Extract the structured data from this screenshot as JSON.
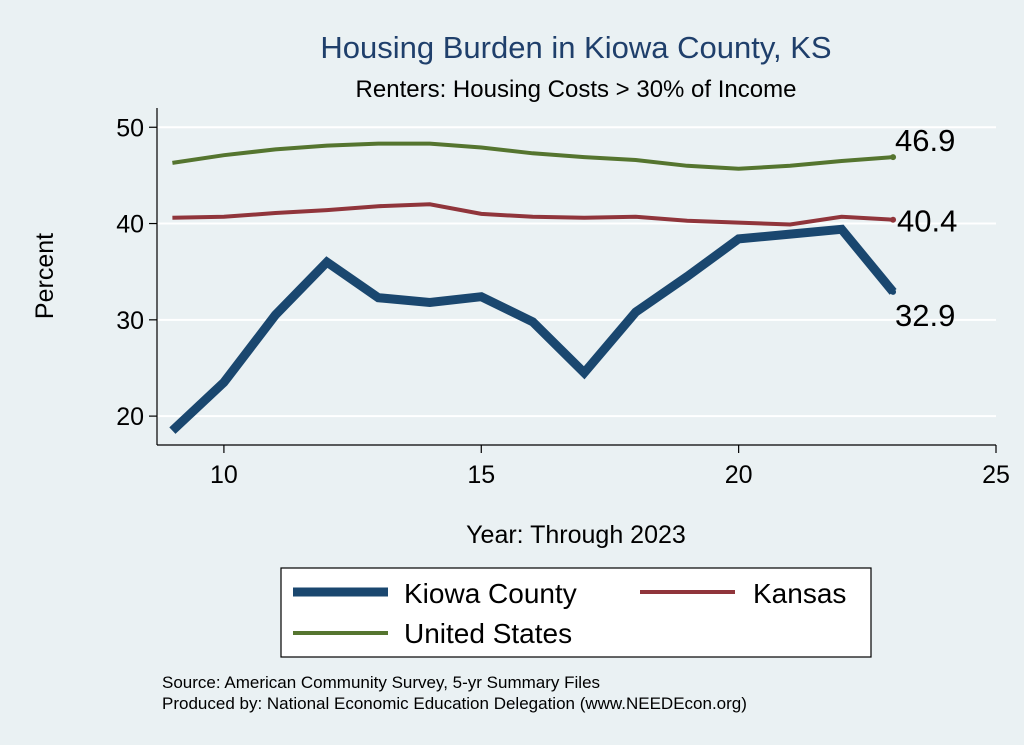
{
  "chart_data": {
    "type": "line",
    "title": "Housing Burden in Kiowa County, KS",
    "subtitle": "Renters: Housing Costs > 30% of Income",
    "xlabel": "Year: Through 2023",
    "ylabel": "Percent",
    "xlim": [
      8.7,
      25
    ],
    "ylim": [
      17,
      52
    ],
    "xticks": [
      10,
      15,
      20,
      25
    ],
    "yticks": [
      20,
      30,
      40,
      50
    ],
    "series": [
      {
        "name": "Kiowa County",
        "color": "#1a476f",
        "x": [
          9,
          10,
          11,
          12,
          13,
          14,
          15,
          16,
          17,
          18,
          19,
          20,
          21,
          22,
          23
        ],
        "values": [
          18.5,
          23.5,
          30.5,
          36.0,
          32.3,
          31.8,
          32.4,
          29.8,
          24.5,
          30.8,
          34.5,
          38.4,
          38.9,
          39.4,
          32.9
        ],
        "end_label": "32.9"
      },
      {
        "name": "Kansas",
        "color": "#90353b",
        "x": [
          9,
          10,
          11,
          12,
          13,
          14,
          15,
          16,
          17,
          18,
          19,
          20,
          21,
          22,
          23
        ],
        "values": [
          40.6,
          40.7,
          41.1,
          41.4,
          41.8,
          42.0,
          41.0,
          40.7,
          40.6,
          40.7,
          40.3,
          40.1,
          39.9,
          40.7,
          40.4
        ],
        "end_label": "40.4"
      },
      {
        "name": "United States",
        "color": "#55752f",
        "x": [
          9,
          10,
          11,
          12,
          13,
          14,
          15,
          16,
          17,
          18,
          19,
          20,
          21,
          22,
          23
        ],
        "values": [
          46.3,
          47.1,
          47.7,
          48.1,
          48.3,
          48.3,
          47.9,
          47.3,
          46.9,
          46.6,
          46.0,
          45.7,
          46.0,
          46.5,
          46.9
        ],
        "end_label": "46.9"
      }
    ],
    "legend": [
      "Kiowa County",
      "Kansas",
      "United States"
    ],
    "legend_position": "bottom",
    "grid": true
  },
  "notes": {
    "source": "Source: American Community Survey, 5-yr Summary Files",
    "produced_by": "Produced by: National Economic Education Delegation (www.NEEDEcon.org)"
  }
}
